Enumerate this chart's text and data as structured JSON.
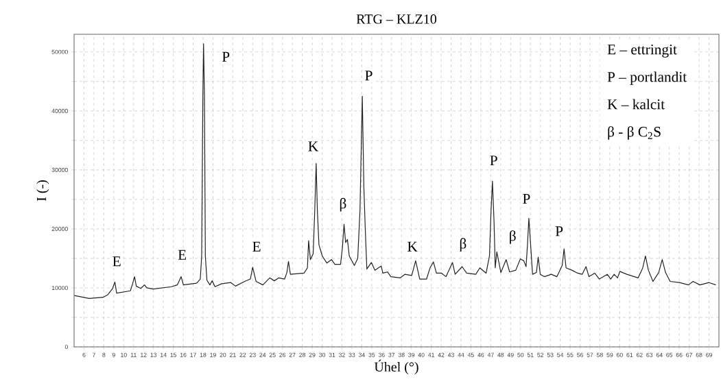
{
  "chart_data": {
    "type": "line",
    "title": "RTG – KLZ10",
    "xlabel": "Úhel (°)",
    "ylabel": "I (-)",
    "color": "#222222",
    "grid": true,
    "xlim": [
      5,
      70
    ],
    "ylim": [
      0,
      53000
    ],
    "xticks": [
      6,
      7,
      8,
      9,
      10,
      11,
      12,
      13,
      14,
      15,
      16,
      17,
      18,
      19,
      20,
      21,
      22,
      23,
      24,
      25,
      26,
      27,
      28,
      29,
      30,
      31,
      32,
      33,
      34,
      35,
      36,
      37,
      38,
      39,
      40,
      41,
      42,
      43,
      44,
      45,
      46,
      47,
      48,
      49,
      50,
      51,
      52,
      53,
      54,
      55,
      56,
      57,
      58,
      59,
      60,
      61,
      62,
      63,
      64,
      65,
      66,
      67,
      68,
      69
    ],
    "yticks": [
      0,
      10000,
      20000,
      30000,
      40000,
      50000
    ],
    "x": [
      5.03,
      6.53,
      7.91,
      8.37,
      8.88,
      9.11,
      9.29,
      10.67,
      10.9,
      11.09,
      11.27,
      11.71,
      12.1,
      12.33,
      12.98,
      14.82,
      15.4,
      15.79,
      16.02,
      17.35,
      17.72,
      17.86,
      17.98,
      18.05,
      18.14,
      18.23,
      18.39,
      18.69,
      18.92,
      19.2,
      19.89,
      20.81,
      21.27,
      22.19,
      22.77,
      23.0,
      23.34,
      24.03,
      24.72,
      25.18,
      25.64,
      26.22,
      26.45,
      26.61,
      26.8,
      28.18,
      28.52,
      28.64,
      28.82,
      29.1,
      29.26,
      29.4,
      29.52,
      29.68,
      30.02,
      30.48,
      30.94,
      31.29,
      31.86,
      32.05,
      32.21,
      32.37,
      32.55,
      32.74,
      33.25,
      33.59,
      33.82,
      34.05,
      34.21,
      34.35,
      34.51,
      34.97,
      35.32,
      35.96,
      36.12,
      36.59,
      36.93,
      37.88,
      38.34,
      39.03,
      39.43,
      39.84,
      40.53,
      40.88,
      41.22,
      41.52,
      42.03,
      42.49,
      43.14,
      43.41,
      44.11,
      44.57,
      45.49,
      45.9,
      46.53,
      46.87,
      47.03,
      47.17,
      47.33,
      47.45,
      47.61,
      48.02,
      48.55,
      48.9,
      49.52,
      49.98,
      50.33,
      50.56,
      50.7,
      50.84,
      51.02,
      51.21,
      51.6,
      51.78,
      51.99,
      52.4,
      53.1,
      53.67,
      54.2,
      54.39,
      54.59,
      55.17,
      55.75,
      56.21,
      56.6,
      56.9,
      57.48,
      57.94,
      58.75,
      59.09,
      59.44,
      59.78,
      60.01,
      60.71,
      61.86,
      62.32,
      62.59,
      62.89,
      63.35,
      63.93,
      64.28,
      64.62,
      65.08,
      66.01,
      66.93,
      67.39,
      68.08,
      69.0,
      69.69
    ],
    "values": [
      8700,
      8200,
      8400,
      8800,
      9900,
      11000,
      9100,
      9500,
      10700,
      11900,
      10300,
      9900,
      10500,
      10000,
      9800,
      10200,
      10500,
      11900,
      10500,
      10800,
      11500,
      15400,
      42600,
      51400,
      42600,
      15400,
      11300,
      10500,
      11200,
      10200,
      10700,
      10900,
      10300,
      11100,
      11500,
      13500,
      11100,
      10500,
      11700,
      11200,
      11700,
      11500,
      12600,
      14500,
      12300,
      12500,
      13400,
      18000,
      14800,
      15800,
      23200,
      31100,
      23200,
      17300,
      15400,
      14200,
      14800,
      14000,
      14000,
      16900,
      20800,
      17700,
      18200,
      15400,
      13800,
      15000,
      23200,
      42500,
      27000,
      20000,
      13200,
      14300,
      13000,
      13700,
      12500,
      12700,
      11900,
      11700,
      12300,
      12100,
      14600,
      11500,
      11500,
      13400,
      14400,
      12500,
      12500,
      11900,
      14300,
      12300,
      13600,
      12500,
      12300,
      13400,
      12500,
      15400,
      23200,
      28100,
      21200,
      13400,
      16100,
      12600,
      14800,
      12700,
      13000,
      14900,
      14600,
      13600,
      17300,
      21800,
      17300,
      12300,
      12600,
      15200,
      12300,
      11900,
      12300,
      11900,
      13800,
      16600,
      13400,
      13000,
      12500,
      12300,
      13600,
      11900,
      12500,
      11500,
      12300,
      11500,
      12300,
      11700,
      12800,
      12300,
      11700,
      13400,
      15400,
      13000,
      11100,
      12600,
      14800,
      12600,
      11100,
      10900,
      10500,
      11100,
      10500,
      10900,
      10500
    ],
    "annotations": [
      {
        "text": "E",
        "x": 9.3,
        "y": 14500
      },
      {
        "text": "E",
        "x": 15.9,
        "y": 15600
      },
      {
        "text": "P",
        "x": 20.3,
        "y": 49200
      },
      {
        "text": "E",
        "x": 23.4,
        "y": 17000
      },
      {
        "text": "K",
        "x": 29.1,
        "y": 34000
      },
      {
        "text": "β",
        "x": 32.1,
        "y": 24100
      },
      {
        "text": "P",
        "x": 34.7,
        "y": 46000
      },
      {
        "text": "K",
        "x": 39.1,
        "y": 17000
      },
      {
        "text": "β",
        "x": 44.2,
        "y": 17300
      },
      {
        "text": "P",
        "x": 47.3,
        "y": 31600
      },
      {
        "text": "β",
        "x": 49.2,
        "y": 18600
      },
      {
        "text": "P",
        "x": 50.6,
        "y": 25100
      },
      {
        "text": "P",
        "x": 53.9,
        "y": 19600
      },
      "E – ettringit",
      "P – portlandit",
      "K – kalcit",
      "β - β C$_{2}$S"
    ]
  }
}
